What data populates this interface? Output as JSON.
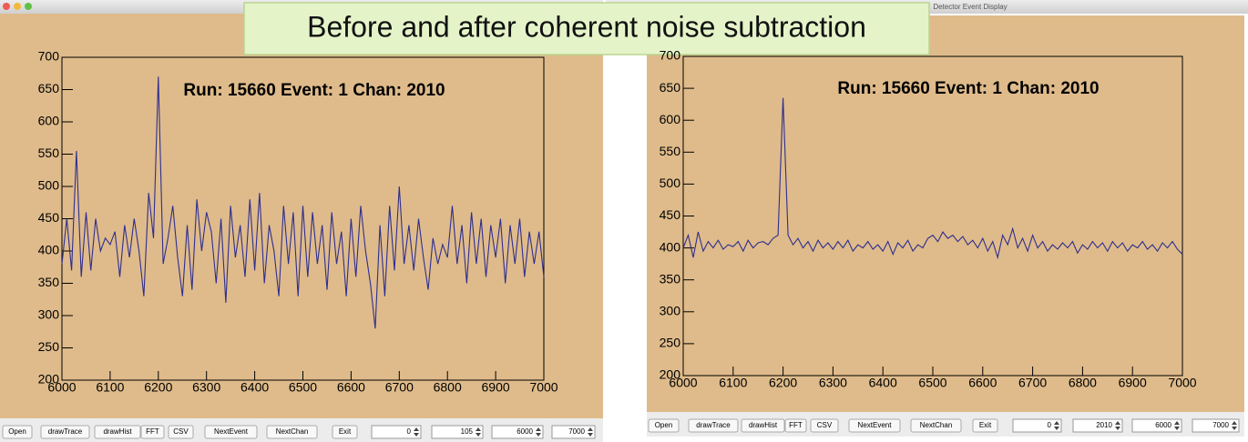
{
  "banner": "Before and after coherent noise subtraction",
  "windows": [
    {
      "buttons": [
        "Open",
        "drawTrace",
        "drawHist",
        "FFT",
        "CSV",
        "NextEvent",
        "NextChan",
        "Exit"
      ],
      "fields": [
        0,
        105,
        6000,
        7000
      ]
    },
    {
      "title": "Detector Event Display",
      "buttons": [
        "Open",
        "drawTrace",
        "drawHist",
        "FFT",
        "CSV",
        "NextEvent",
        "NextChan",
        "Exit"
      ],
      "fields": [
        0,
        2010,
        6000,
        7000
      ]
    }
  ],
  "chart_data": [
    {
      "type": "line",
      "title": "Run: 15660 Event: 1 Chan: 2010",
      "color": "#2e2e8f",
      "xlim": [
        6000,
        7000
      ],
      "ylim": [
        200,
        700
      ],
      "xticks": [
        6000,
        6100,
        6200,
        6300,
        6400,
        6500,
        6600,
        6700,
        6800,
        6900,
        7000
      ],
      "yticks": [
        200,
        250,
        300,
        350,
        400,
        450,
        500,
        550,
        600,
        650,
        700
      ],
      "x": [
        6000,
        6010,
        6020,
        6030,
        6040,
        6050,
        6060,
        6070,
        6080,
        6090,
        6100,
        6110,
        6120,
        6130,
        6140,
        6150,
        6160,
        6170,
        6180,
        6190,
        6200,
        6210,
        6220,
        6230,
        6240,
        6250,
        6260,
        6270,
        6280,
        6290,
        6300,
        6310,
        6320,
        6330,
        6340,
        6350,
        6360,
        6370,
        6380,
        6390,
        6400,
        6410,
        6420,
        6430,
        6440,
        6450,
        6460,
        6470,
        6480,
        6490,
        6500,
        6510,
        6520,
        6530,
        6540,
        6550,
        6560,
        6570,
        6580,
        6590,
        6600,
        6610,
        6620,
        6630,
        6640,
        6650,
        6660,
        6670,
        6680,
        6690,
        6700,
        6710,
        6720,
        6730,
        6740,
        6750,
        6760,
        6770,
        6780,
        6790,
        6800,
        6810,
        6820,
        6830,
        6840,
        6850,
        6860,
        6870,
        6880,
        6890,
        6900,
        6910,
        6920,
        6930,
        6940,
        6950,
        6960,
        6970,
        6980,
        6990,
        7000
      ],
      "values": [
        380,
        450,
        370,
        555,
        360,
        460,
        370,
        450,
        400,
        420,
        410,
        430,
        360,
        440,
        390,
        450,
        400,
        330,
        490,
        420,
        670,
        380,
        420,
        470,
        390,
        330,
        440,
        340,
        480,
        400,
        460,
        430,
        350,
        450,
        320,
        470,
        390,
        440,
        360,
        480,
        370,
        490,
        350,
        440,
        400,
        330,
        470,
        380,
        460,
        330,
        470,
        360,
        460,
        380,
        440,
        340,
        460,
        380,
        430,
        330,
        450,
        360,
        470,
        400,
        350,
        280,
        440,
        330,
        470,
        370,
        500,
        380,
        440,
        370,
        450,
        390,
        340,
        420,
        380,
        410,
        390,
        470,
        380,
        440,
        350,
        460,
        380,
        450,
        360,
        440,
        390,
        450,
        350,
        440,
        380,
        450,
        360,
        430,
        380,
        430,
        360
      ]
    },
    {
      "type": "line",
      "title": "Run: 15660 Event: 1 Chan: 2010",
      "color": "#2e2e8f",
      "xlim": [
        6000,
        7000
      ],
      "ylim": [
        200,
        700
      ],
      "xticks": [
        6000,
        6100,
        6200,
        6300,
        6400,
        6500,
        6600,
        6700,
        6800,
        6900,
        7000
      ],
      "yticks": [
        200,
        250,
        300,
        350,
        400,
        450,
        500,
        550,
        600,
        650,
        700
      ],
      "x": [
        6000,
        6010,
        6020,
        6030,
        6040,
        6050,
        6060,
        6070,
        6080,
        6090,
        6100,
        6110,
        6120,
        6130,
        6140,
        6150,
        6160,
        6170,
        6180,
        6190,
        6200,
        6210,
        6220,
        6230,
        6240,
        6250,
        6260,
        6270,
        6280,
        6290,
        6300,
        6310,
        6320,
        6330,
        6340,
        6350,
        6360,
        6370,
        6380,
        6390,
        6400,
        6410,
        6420,
        6430,
        6440,
        6450,
        6460,
        6470,
        6480,
        6490,
        6500,
        6510,
        6520,
        6530,
        6540,
        6550,
        6560,
        6570,
        6580,
        6590,
        6600,
        6610,
        6620,
        6630,
        6640,
        6650,
        6660,
        6670,
        6680,
        6690,
        6700,
        6710,
        6720,
        6730,
        6740,
        6750,
        6760,
        6770,
        6780,
        6790,
        6800,
        6810,
        6820,
        6830,
        6840,
        6850,
        6860,
        6870,
        6880,
        6890,
        6900,
        6910,
        6920,
        6930,
        6940,
        6950,
        6960,
        6970,
        6980,
        6990,
        7000
      ],
      "values": [
        400,
        420,
        385,
        425,
        395,
        410,
        400,
        412,
        398,
        405,
        402,
        410,
        395,
        412,
        400,
        408,
        410,
        405,
        415,
        420,
        635,
        420,
        405,
        415,
        400,
        410,
        395,
        412,
        400,
        408,
        398,
        410,
        400,
        412,
        395,
        405,
        400,
        410,
        398,
        405,
        395,
        410,
        390,
        408,
        400,
        412,
        395,
        405,
        400,
        415,
        420,
        410,
        425,
        415,
        420,
        410,
        418,
        405,
        412,
        400,
        415,
        395,
        410,
        385,
        420,
        405,
        430,
        400,
        415,
        395,
        420,
        400,
        410,
        395,
        405,
        398,
        408,
        400,
        410,
        392,
        405,
        398,
        410,
        400,
        408,
        395,
        410,
        400,
        408,
        395,
        405,
        400,
        410,
        398,
        405,
        395,
        408,
        400,
        410,
        398,
        390
      ]
    }
  ]
}
